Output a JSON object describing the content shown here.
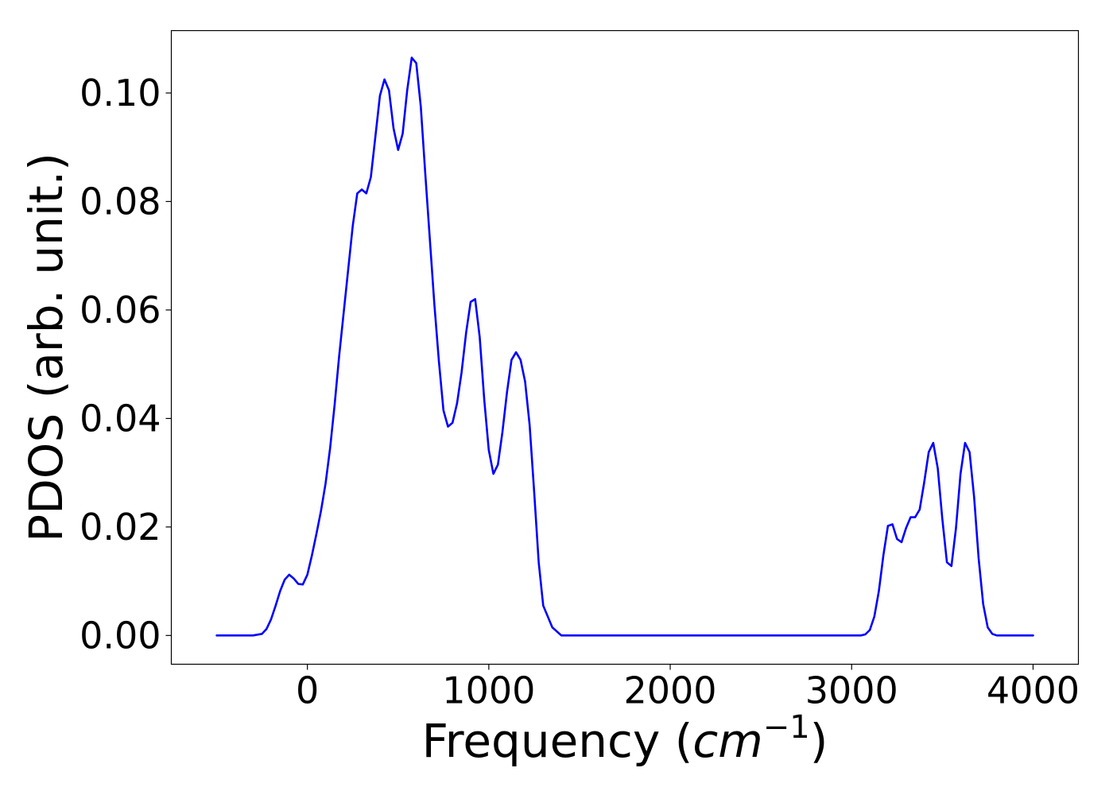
{
  "chart_data": {
    "type": "line",
    "xlabel": "Frequency",
    "xlabel_unit_base": "cm",
    "xlabel_unit_exp": "−1",
    "ylabel": "PDOS (arb. unit.)",
    "xlim": [
      -750,
      4250
    ],
    "ylim": [
      -0.0053,
      0.1115
    ],
    "xticks": [
      0,
      1000,
      2000,
      3000,
      4000
    ],
    "xtick_labels": [
      "0",
      "1000",
      "2000",
      "3000",
      "4000"
    ],
    "yticks": [
      0.0,
      0.02,
      0.04,
      0.06,
      0.08,
      0.1
    ],
    "ytick_labels": [
      "0.00",
      "0.02",
      "0.04",
      "0.06",
      "0.08",
      "0.10"
    ],
    "grid": false,
    "series": [
      {
        "color": "#0000ff",
        "x": [
          -500,
          -300,
          -250,
          -225,
          -200,
          -175,
          -150,
          -125,
          -100,
          -75,
          -50,
          -25,
          0,
          25,
          50,
          75,
          100,
          125,
          150,
          175,
          200,
          225,
          250,
          275,
          300,
          325,
          350,
          375,
          400,
          425,
          450,
          475,
          500,
          525,
          550,
          575,
          600,
          625,
          650,
          675,
          700,
          725,
          750,
          775,
          800,
          825,
          850,
          875,
          900,
          925,
          950,
          975,
          1000,
          1025,
          1050,
          1075,
          1100,
          1125,
          1150,
          1175,
          1200,
          1225,
          1250,
          1275,
          1300,
          1350,
          1400,
          2000,
          3000,
          3050,
          3075,
          3100,
          3125,
          3150,
          3175,
          3200,
          3225,
          3250,
          3275,
          3300,
          3325,
          3350,
          3375,
          3400,
          3425,
          3450,
          3475,
          3500,
          3525,
          3550,
          3575,
          3600,
          3625,
          3650,
          3675,
          3700,
          3725,
          3750,
          3775,
          3800,
          4000
        ],
        "y": [
          0.0,
          0.0,
          0.0003,
          0.0012,
          0.003,
          0.0055,
          0.0082,
          0.0103,
          0.0112,
          0.0105,
          0.0095,
          0.0094,
          0.0112,
          0.0148,
          0.0188,
          0.023,
          0.028,
          0.0345,
          0.0425,
          0.0515,
          0.0595,
          0.0675,
          0.0755,
          0.0815,
          0.0822,
          0.0815,
          0.0845,
          0.092,
          0.0995,
          0.1025,
          0.1005,
          0.0935,
          0.0895,
          0.0925,
          0.1005,
          0.1065,
          0.1055,
          0.0975,
          0.085,
          0.073,
          0.061,
          0.0505,
          0.0415,
          0.0385,
          0.0392,
          0.0428,
          0.0485,
          0.0558,
          0.0615,
          0.062,
          0.055,
          0.0435,
          0.0342,
          0.0298,
          0.0315,
          0.0375,
          0.0448,
          0.0508,
          0.0522,
          0.0508,
          0.0468,
          0.0388,
          0.0265,
          0.0135,
          0.0055,
          0.0015,
          0.0,
          0.0,
          0.0,
          0.0,
          0.0002,
          0.001,
          0.0035,
          0.0082,
          0.0148,
          0.0202,
          0.0205,
          0.0178,
          0.0172,
          0.0198,
          0.0218,
          0.0218,
          0.0232,
          0.0282,
          0.0338,
          0.0355,
          0.0308,
          0.0215,
          0.0135,
          0.0128,
          0.0198,
          0.0298,
          0.0355,
          0.0338,
          0.0255,
          0.0142,
          0.0058,
          0.0015,
          0.0003,
          0.0,
          0.0
        ]
      }
    ]
  }
}
